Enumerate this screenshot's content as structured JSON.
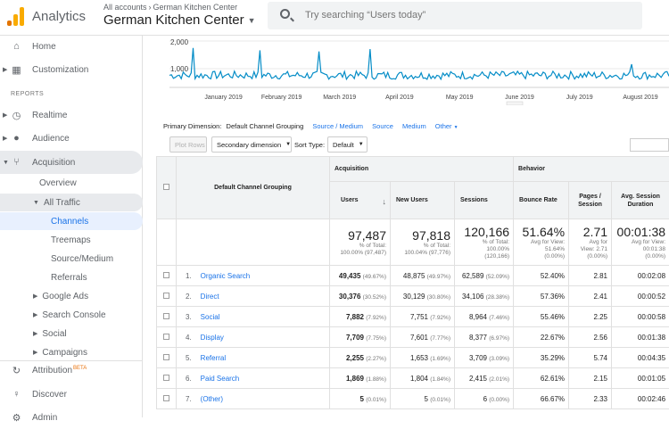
{
  "header": {
    "app_name": "Analytics",
    "account_path": "All accounts",
    "account_sub": "German Kitchen Center",
    "property": "German Kitchen Center",
    "search_placeholder": "Try searching “Users today”"
  },
  "sidebar": {
    "home": "Home",
    "customization": "Customization",
    "reports_label": "REPORTS",
    "realtime": "Realtime",
    "audience": "Audience",
    "acquisition": "Acquisition",
    "overview": "Overview",
    "all_traffic": "All Traffic",
    "channels": "Channels",
    "treemaps": "Treemaps",
    "source_medium": "Source/Medium",
    "referrals": "Referrals",
    "google_ads": "Google Ads",
    "search_console": "Search Console",
    "social": "Social",
    "campaigns": "Campaigns",
    "attribution": "Attribution",
    "beta": "BETA",
    "discover": "Discover",
    "admin": "Admin"
  },
  "chart": {
    "y_labels": [
      "2,000",
      "1,000"
    ],
    "x_labels": [
      "January 2019",
      "February 2019",
      "March 2019",
      "April 2019",
      "May 2019",
      "June 2019",
      "July 2019",
      "August 2019"
    ],
    "line_color": "#058dc7",
    "spikes": [
      {
        "x": "2019-01-01",
        "value": 1700
      },
      {
        "x": "2019-02-04",
        "value": 1600
      },
      {
        "x": "2019-03-06",
        "value": 1550
      },
      {
        "x": "2019-04-01",
        "value": 1650
      },
      {
        "x": "2019-08-12",
        "value": 1000
      }
    ],
    "baseline_range": [
      350,
      700
    ]
  },
  "dimension": {
    "label": "Primary Dimension:",
    "current": "Default Channel Grouping",
    "options": [
      "Source / Medium",
      "Source",
      "Medium",
      "Other"
    ]
  },
  "toolbar": {
    "plot_rows": "Plot Rows",
    "secondary": "Secondary dimension",
    "sort_label": "Sort Type:",
    "sort_value": "Default"
  },
  "table": {
    "group_acq": "Acquisition",
    "group_beh": "Behavior",
    "col_dim": "Default Channel Grouping",
    "cols": [
      "Users",
      "New Users",
      "Sessions",
      "Bounce Rate",
      "Pages / Session",
      "Avg. Session Duration"
    ],
    "totals": [
      {
        "v": "97,487",
        "a": "% of Total:",
        "b": "100.00% (97,487)"
      },
      {
        "v": "97,818",
        "a": "% of Total:",
        "b": "100.04% (97,776)"
      },
      {
        "v": "120,166",
        "a": "% of Total:",
        "b": "100.00%",
        "c": "(120,166)"
      },
      {
        "v": "51.64%",
        "a": "Avg for View:",
        "b": "51.64%",
        "c": "(0.00%)"
      },
      {
        "v": "2.71",
        "a": "Avg for",
        "b": "View: 2.71",
        "c": "(0.00%)"
      },
      {
        "v": "00:01:38",
        "a": "Avg for View:",
        "b": "00:01:38",
        "c": "(0.00%)"
      }
    ],
    "rows": [
      {
        "i": "1.",
        "name": "Organic Search",
        "users": "49,435",
        "up": "(49.67%)",
        "new": "48,875",
        "np": "(49.97%)",
        "sess": "62,589",
        "sp": "(52.09%)",
        "br": "52.40%",
        "pps": "2.81",
        "dur": "00:02:08"
      },
      {
        "i": "2.",
        "name": "Direct",
        "users": "30,376",
        "up": "(30.52%)",
        "new": "30,129",
        "np": "(30.80%)",
        "sess": "34,106",
        "sp": "(28.38%)",
        "br": "57.36%",
        "pps": "2.41",
        "dur": "00:00:52"
      },
      {
        "i": "3.",
        "name": "Social",
        "users": "7,882",
        "up": "(7.92%)",
        "new": "7,751",
        "np": "(7.92%)",
        "sess": "8,964",
        "sp": "(7.46%)",
        "br": "55.46%",
        "pps": "2.25",
        "dur": "00:00:58"
      },
      {
        "i": "4.",
        "name": "Display",
        "users": "7,709",
        "up": "(7.75%)",
        "new": "7,601",
        "np": "(7.77%)",
        "sess": "8,377",
        "sp": "(6.97%)",
        "br": "22.67%",
        "pps": "2.56",
        "dur": "00:01:38"
      },
      {
        "i": "5.",
        "name": "Referral",
        "users": "2,255",
        "up": "(2.27%)",
        "new": "1,653",
        "np": "(1.69%)",
        "sess": "3,709",
        "sp": "(3.09%)",
        "br": "35.29%",
        "pps": "5.74",
        "dur": "00:04:35"
      },
      {
        "i": "6.",
        "name": "Paid Search",
        "users": "1,869",
        "up": "(1.88%)",
        "new": "1,804",
        "np": "(1.84%)",
        "sess": "2,415",
        "sp": "(2.01%)",
        "br": "62.61%",
        "pps": "2.15",
        "dur": "00:01:05"
      },
      {
        "i": "7.",
        "name": "(Other)",
        "users": "5",
        "up": "(0.01%)",
        "new": "5",
        "np": "(0.01%)",
        "sess": "6",
        "sp": "(0.00%)",
        "br": "66.67%",
        "pps": "2.33",
        "dur": "00:02:46"
      }
    ]
  }
}
